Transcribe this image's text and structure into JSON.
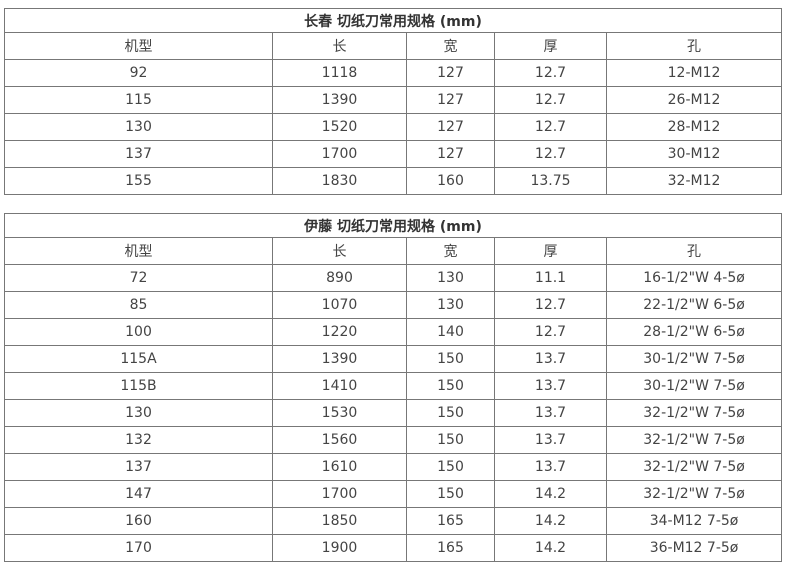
{
  "tables": [
    {
      "title": "长春 切纸刀常用规格 (mm)",
      "headers": [
        "机型",
        "长",
        "宽",
        "厚",
        "孔"
      ],
      "rows": [
        [
          "92",
          "1118",
          "127",
          "12.7",
          "12-M12"
        ],
        [
          "115",
          "1390",
          "127",
          "12.7",
          "26-M12"
        ],
        [
          "130",
          "1520",
          "127",
          "12.7",
          "28-M12"
        ],
        [
          "137",
          "1700",
          "127",
          "12.7",
          "30-M12"
        ],
        [
          "155",
          "1830",
          "160",
          "13.75",
          "32-M12"
        ]
      ]
    },
    {
      "title": "伊藤 切纸刀常用规格 (mm)",
      "headers": [
        "机型",
        "长",
        "宽",
        "厚",
        "孔"
      ],
      "rows": [
        [
          "72",
          "890",
          "130",
          "11.1",
          "16-1/2\"W 4-5ø"
        ],
        [
          "85",
          "1070",
          "130",
          "12.7",
          "22-1/2\"W 6-5ø"
        ],
        [
          "100",
          "1220",
          "140",
          "12.7",
          "28-1/2\"W 6-5ø"
        ],
        [
          "115A",
          "1390",
          "150",
          "13.7",
          "30-1/2\"W 7-5ø"
        ],
        [
          "115B",
          "1410",
          "150",
          "13.7",
          "30-1/2\"W 7-5ø"
        ],
        [
          "130",
          "1530",
          "150",
          "13.7",
          "32-1/2\"W 7-5ø"
        ],
        [
          "132",
          "1560",
          "150",
          "13.7",
          "32-1/2\"W 7-5ø"
        ],
        [
          "137",
          "1610",
          "150",
          "13.7",
          "32-1/2\"W 7-5ø"
        ],
        [
          "147",
          "1700",
          "150",
          "14.2",
          "32-1/2\"W 7-5ø"
        ],
        [
          "160",
          "1850",
          "165",
          "14.2",
          "34-M12  7-5ø"
        ],
        [
          "170",
          "1900",
          "165",
          "14.2",
          "36-M12 7-5ø"
        ]
      ]
    }
  ]
}
